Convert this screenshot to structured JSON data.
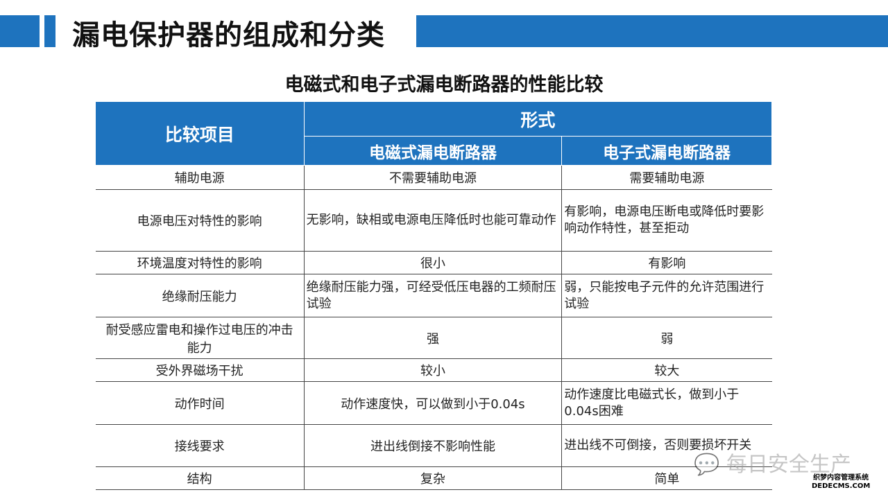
{
  "title": "漏电保护器的组成和分类",
  "subtitle": "电磁式和电子式漏电断路器的性能比较",
  "table": {
    "header_item": "比较项目",
    "header_group": "形式",
    "col1": "电磁式漏电断路器",
    "col2": "电子式漏电断路器",
    "rows": [
      {
        "item": "辅助电源",
        "a": "不需要辅助电源",
        "b": "需要辅助电源"
      },
      {
        "item": "电源电压对特性的影响",
        "a": "无影响，缺相或电源电压降低时也能可靠动作",
        "b": "有影响，电源电压断电或降低时要影响动作特性，甚至拒动"
      },
      {
        "item": "环境温度对特性的影响",
        "a": "很小",
        "b": "有影响"
      },
      {
        "item": "绝缘耐压能力",
        "a": "绝缘耐压能力强，可经受低压电器的工频耐压试验",
        "b": "弱，只能按电子元件的允许范围进行试验"
      },
      {
        "item": "耐受感应雷电和操作过电压的冲击能力",
        "a": "强",
        "b": "弱"
      },
      {
        "item": "受外界磁场干扰",
        "a": "较小",
        "b": "较大"
      },
      {
        "item": "动作时间",
        "a": "动作速度快，可以做到小于0.04s",
        "b": "动作速度比电磁式长，做到小于0.04s困难"
      },
      {
        "item": "接线要求",
        "a": "进出线倒接不影响性能",
        "b": "进出线不可倒接，否则要损坏开关"
      },
      {
        "item": "结构",
        "a": "复杂",
        "b": "简单"
      }
    ]
  },
  "watermark": "每日安全生产",
  "watermark2_line1": "织梦内容管理系统",
  "watermark2_line2": "DEDECMS.COM",
  "colors": {
    "accent": "#1e73be"
  }
}
